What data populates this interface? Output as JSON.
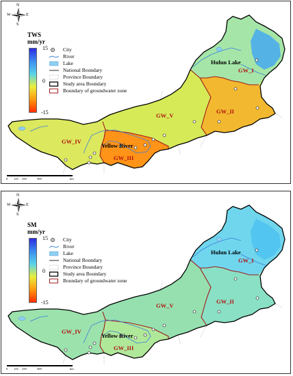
{
  "compass": {
    "n": "N",
    "s": "S",
    "w": "W",
    "e": "E"
  },
  "scale_bar": {
    "ticks": [
      "0",
      "125",
      "250",
      "500"
    ],
    "unit": "km"
  },
  "legend": [
    {
      "label": "City",
      "icon": "city-icon"
    },
    {
      "label": "River",
      "icon": "river-line-icon"
    },
    {
      "label": "Lake",
      "icon": "lake-fill-icon"
    },
    {
      "label": "National Boundary",
      "icon": "national-boundary-icon"
    },
    {
      "label": "Province Boundary",
      "icon": "province-boundary-icon"
    },
    {
      "label": "Study area Boundary",
      "icon": "study-area-boundary-icon"
    },
    {
      "label": "Boundary of groundwater zone",
      "icon": "groundwater-zone-boundary-icon"
    }
  ],
  "zone_labels": {
    "gw1": "GW_I",
    "gw2": "GW_II",
    "gw3": "GW_III",
    "gw4": "GW_IV",
    "gw5": "GW_V"
  },
  "place_labels": {
    "hulun_lake": "Hulun Lake",
    "yellow_river": "Yellow River"
  },
  "panels": [
    {
      "variable": "TWS",
      "unit": "mm/yr",
      "cb_max": "15",
      "cb_mid": "0",
      "cb_min": "-15",
      "colorbar_colors": [
        "#2a2adf",
        "#3b8df0",
        "#58d4e8",
        "#e8ee3a",
        "#ff9a10",
        "#ff2e00"
      ],
      "gw_colors": {
        "east": "#47a8ee",
        "gw1": "#a5e6a8",
        "gw2": "#f2b830",
        "gw3": "#ff9418",
        "gw4": "#dce85e",
        "gw5": "#d6ea58"
      }
    },
    {
      "variable": "SM",
      "unit": "mm/yr",
      "cb_max": "15",
      "cb_mid": "0",
      "cb_min": "-15",
      "colorbar_colors": [
        "#2a2adf",
        "#3b8df0",
        "#58d4e8",
        "#e8ee3a",
        "#ff9a10",
        "#ff2e00"
      ],
      "gw_colors": {
        "east": "#4cc2f0",
        "gw1": "#70d6ee",
        "gw2": "#8ae0c4",
        "gw3": "#b0e89a",
        "gw4": "#9ce2ac",
        "gw5": "#96e0b0"
      }
    }
  ]
}
